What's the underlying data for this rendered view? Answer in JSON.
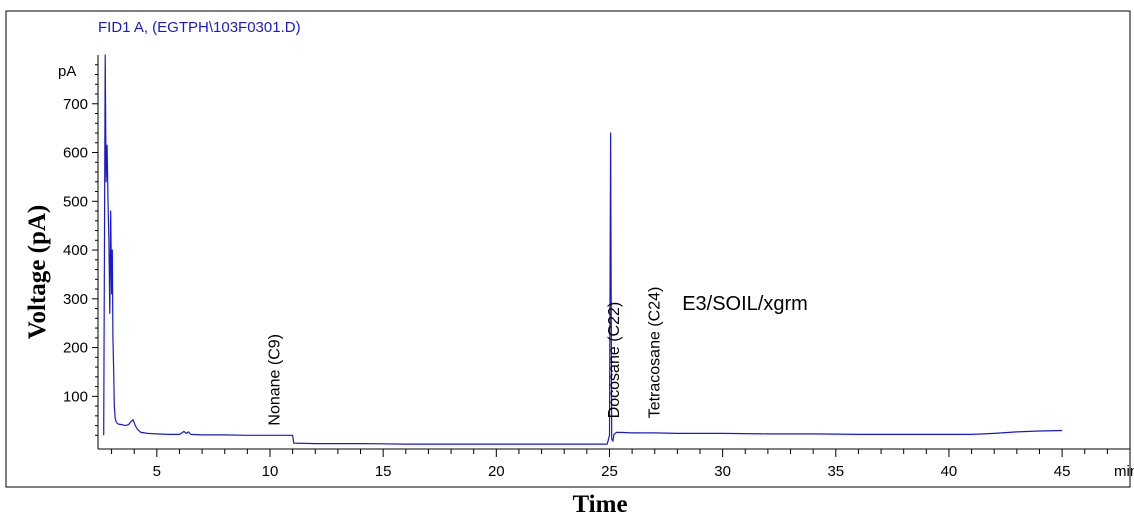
{
  "chart_data": {
    "type": "line",
    "title": "FID1 A,  (EGTPH\\103F0301.D)",
    "ylabel": "Voltage (pA)",
    "y_unit_label": "pA",
    "xlabel": "Time",
    "x_unit_label": "min",
    "xlim": [
      2.4,
      48
    ],
    "ylim": [
      -8,
      800
    ],
    "xticks_major": [
      5,
      10,
      15,
      20,
      25,
      30,
      35,
      40,
      45
    ],
    "yticks_major": [
      100,
      200,
      300,
      400,
      500,
      600,
      700
    ],
    "grid": false,
    "legend": "none",
    "line_color": "#1a1acc",
    "sample_label": "E3/SOIL/xgrm",
    "annotations": [
      {
        "text": "Nonane (C9)",
        "x": 10.2,
        "y": 40
      },
      {
        "text": "Docosane (C22)",
        "x": 25.2,
        "y": 55
      },
      {
        "text": "Tetracosane (C24)",
        "x": 27.0,
        "y": 55
      }
    ],
    "series": [
      {
        "x": [
          2.65,
          2.72,
          2.76,
          2.8,
          2.84,
          2.88,
          2.92,
          2.96,
          3.0,
          3.03,
          3.06,
          3.09,
          3.12,
          3.16,
          3.2,
          3.25,
          3.3,
          3.45,
          3.6,
          3.75,
          3.85,
          3.95,
          4.05,
          4.15,
          4.3,
          4.6,
          5.0,
          5.5,
          6.0,
          6.2,
          6.3,
          6.4,
          6.5,
          7.0,
          8.0,
          9.0,
          10.0,
          10.8,
          11.0,
          11.05,
          12.0,
          14.0,
          16.0,
          18.0,
          20.0,
          22.0,
          24.0,
          24.9,
          25.0,
          25.05,
          25.1,
          25.15,
          25.2,
          25.3,
          25.5,
          26.0,
          27.0,
          28.0,
          30.0,
          32.0,
          34.0,
          36.0,
          38.0,
          40.0,
          41.0,
          41.5,
          42.0,
          43.0,
          44.0,
          45.0
        ],
        "y": [
          20,
          800,
          540,
          615,
          500,
          420,
          270,
          480,
          310,
          400,
          220,
          160,
          80,
          55,
          48,
          45,
          43,
          42,
          40,
          42,
          48,
          52,
          40,
          32,
          26,
          24,
          23,
          22,
          22,
          28,
          24,
          27,
          22,
          21,
          21,
          20,
          20,
          20,
          20,
          4,
          3,
          3,
          2,
          2,
          2,
          2,
          2,
          2,
          20,
          640,
          12,
          8,
          22,
          26,
          26,
          25,
          25,
          24,
          24,
          23,
          23,
          22,
          22,
          22,
          22,
          23,
          24,
          27,
          29,
          30
        ]
      }
    ]
  }
}
